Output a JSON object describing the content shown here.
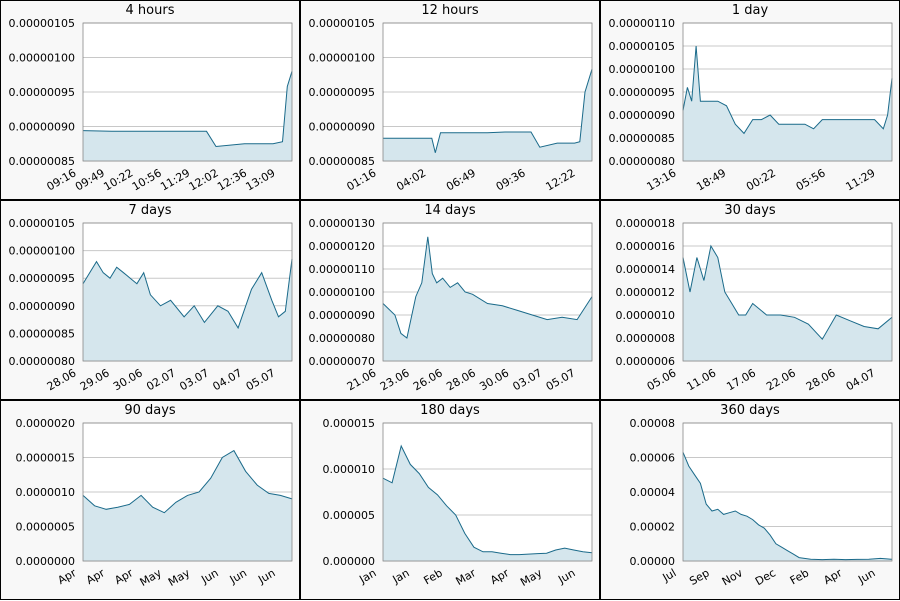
{
  "chart_data": [
    {
      "type": "area",
      "title": "4 hours",
      "ylim": [
        8.5e-07,
        1.05e-06
      ],
      "y_decimals": 8,
      "yticks": [
        "0.00000105",
        "0.00000100",
        "0.00000095",
        "0.00000090",
        "0.00000085"
      ],
      "xticks": [
        "09:16",
        "09:49",
        "10:22",
        "10:56",
        "11:29",
        "12:02",
        "12:36",
        "13:09"
      ],
      "x": [
        0,
        3,
        6,
        9,
        12,
        13,
        14,
        17,
        18,
        19,
        20,
        21,
        21.5,
        22
      ],
      "values": [
        8.94e-07,
        8.93e-07,
        8.93e-07,
        8.93e-07,
        8.93e-07,
        8.93e-07,
        8.71e-07,
        8.75e-07,
        8.75e-07,
        8.75e-07,
        8.75e-07,
        8.78e-07,
        9.58e-07,
        9.8e-07
      ]
    },
    {
      "type": "area",
      "title": "12 hours",
      "ylim": [
        8.5e-07,
        1.05e-06
      ],
      "y_decimals": 8,
      "yticks": [
        "0.00000105",
        "0.00000100",
        "0.00000095",
        "0.00000090",
        "0.00000085"
      ],
      "xticks": [
        "01:16",
        "04:02",
        "06:49",
        "09:36",
        "12:22"
      ],
      "x": [
        0,
        1.5,
        2.8,
        3,
        3.3,
        4,
        5,
        6,
        7,
        8,
        8.5,
        9,
        10,
        11,
        11.3,
        11.6,
        12
      ],
      "values": [
        8.83e-07,
        8.83e-07,
        8.83e-07,
        8.62e-07,
        8.91e-07,
        8.91e-07,
        8.91e-07,
        8.91e-07,
        8.92e-07,
        8.92e-07,
        8.92e-07,
        8.7e-07,
        8.76e-07,
        8.76e-07,
        8.78e-07,
        9.5e-07,
        9.83e-07
      ]
    },
    {
      "type": "area",
      "title": "1 day",
      "ylim": [
        8e-07,
        1.1e-06
      ],
      "y_decimals": 8,
      "yticks": [
        "0.00000110",
        "0.00000105",
        "0.00000100",
        "0.00000095",
        "0.00000090",
        "0.00000085",
        "0.00000080"
      ],
      "xticks": [
        "13:16",
        "18:49",
        "00:22",
        "05:56",
        "11:29"
      ],
      "x": [
        0,
        0.5,
        1,
        1.5,
        2,
        2.5,
        3,
        4,
        5,
        6,
        7,
        8,
        9,
        10,
        11,
        12,
        13,
        14,
        15,
        16,
        17,
        18,
        19,
        20,
        21,
        22,
        23,
        23.5,
        24
      ],
      "values": [
        9.1e-07,
        9.6e-07,
        9.3e-07,
        1.05e-06,
        9.3e-07,
        9.3e-07,
        9.3e-07,
        9.3e-07,
        9.2e-07,
        8.8e-07,
        8.6e-07,
        8.9e-07,
        8.9e-07,
        9e-07,
        8.8e-07,
        8.8e-07,
        8.8e-07,
        8.8e-07,
        8.7e-07,
        8.9e-07,
        8.9e-07,
        8.9e-07,
        8.9e-07,
        8.9e-07,
        8.9e-07,
        8.9e-07,
        8.7e-07,
        9e-07,
        9.8e-07
      ]
    },
    {
      "type": "area",
      "title": "7 days",
      "ylim": [
        8e-07,
        1.05e-06
      ],
      "y_decimals": 8,
      "yticks": [
        "0.00000105",
        "0.00000100",
        "0.00000095",
        "0.00000090",
        "0.00000085",
        "0.00000080"
      ],
      "xticks": [
        "28.06",
        "29.06",
        "30.06",
        "02.07",
        "03.07",
        "04.07",
        "05.07"
      ],
      "x": [
        0,
        0.2,
        0.4,
        0.6,
        0.8,
        1,
        1.2,
        1.4,
        1.6,
        1.8,
        2,
        2.3,
        2.6,
        3,
        3.3,
        3.6,
        4,
        4.3,
        4.6,
        5,
        5.3,
        5.6,
        5.8,
        6,
        6.2
      ],
      "values": [
        9.4e-07,
        9.6e-07,
        9.8e-07,
        9.6e-07,
        9.5e-07,
        9.7e-07,
        9.6e-07,
        9.5e-07,
        9.4e-07,
        9.6e-07,
        9.2e-07,
        9e-07,
        9.1e-07,
        8.8e-07,
        9e-07,
        8.7e-07,
        9e-07,
        8.9e-07,
        8.6e-07,
        9.3e-07,
        9.6e-07,
        9.1e-07,
        8.8e-07,
        8.9e-07,
        9.85e-07
      ]
    },
    {
      "type": "area",
      "title": "14 days",
      "ylim": [
        7e-07,
        1.3e-06
      ],
      "y_decimals": 8,
      "yticks": [
        "0.00000130",
        "0.00000120",
        "0.00000110",
        "0.00000100",
        "0.00000090",
        "0.00000080",
        "0.00000070"
      ],
      "xticks": [
        "21.06",
        "23.06",
        "26.06",
        "28.06",
        "30.06",
        "03.07",
        "05.07"
      ],
      "x": [
        0,
        0.8,
        1.2,
        1.6,
        2.2,
        2.6,
        3,
        3.3,
        3.6,
        4,
        4.5,
        5,
        5.5,
        6,
        7,
        8,
        9,
        10,
        11,
        12,
        13,
        14
      ],
      "values": [
        9.5e-07,
        9e-07,
        8.2e-07,
        8e-07,
        9.8e-07,
        1.04e-06,
        1.24e-06,
        1.08e-06,
        1.04e-06,
        1.06e-06,
        1.02e-06,
        1.04e-06,
        1e-06,
        9.9e-07,
        9.5e-07,
        9.4e-07,
        9.2e-07,
        9e-07,
        8.8e-07,
        8.9e-07,
        8.8e-07,
        9.8e-07
      ]
    },
    {
      "type": "area",
      "title": "30 days",
      "ylim": [
        6e-07,
        1.8e-06
      ],
      "y_decimals": 7,
      "yticks": [
        "0.0000018",
        "0.0000016",
        "0.0000014",
        "0.0000012",
        "0.0000010",
        "0.0000008",
        "0.0000006"
      ],
      "xticks": [
        "05.06",
        "11.06",
        "17.06",
        "22.06",
        "28.06",
        "04.07"
      ],
      "x": [
        0,
        1,
        2,
        3,
        4,
        5,
        6,
        7,
        8,
        9,
        10,
        12,
        14,
        16,
        18,
        20,
        22,
        24,
        26,
        28,
        30
      ],
      "values": [
        1.5e-06,
        1.2e-06,
        1.5e-06,
        1.3e-06,
        1.6e-06,
        1.5e-06,
        1.2e-06,
        1.1e-06,
        1e-06,
        1e-06,
        1.1e-06,
        1e-06,
        1e-06,
        9.8e-07,
        9.2e-07,
        7.9e-07,
        1e-06,
        9.5e-07,
        9e-07,
        8.8e-07,
        9.8e-07
      ]
    },
    {
      "type": "area",
      "title": "90 days",
      "ylim": [
        0,
        2e-06
      ],
      "y_decimals": 7,
      "yticks": [
        "0.0000020",
        "0.0000015",
        "0.0000010",
        "0.0000005",
        "0.0000000"
      ],
      "xticks": [
        "Apr",
        "Apr",
        "Apr",
        "May",
        "May",
        "Jun",
        "Jun",
        "Jun"
      ],
      "x": [
        0,
        5,
        10,
        15,
        20,
        25,
        30,
        35,
        40,
        45,
        50,
        55,
        60,
        65,
        70,
        75,
        80,
        85,
        90
      ],
      "values": [
        9.5e-07,
        8e-07,
        7.5e-07,
        7.8e-07,
        8.2e-07,
        9.5e-07,
        7.8e-07,
        7e-07,
        8.5e-07,
        9.5e-07,
        1e-06,
        1.2e-06,
        1.5e-06,
        1.6e-06,
        1.3e-06,
        1.1e-06,
        9.8e-07,
        9.5e-07,
        9e-07
      ]
    },
    {
      "type": "area",
      "title": "180 days",
      "ylim": [
        0,
        1.5e-05
      ],
      "y_decimals": 6,
      "yticks": [
        "0.000015",
        "0.000010",
        "0.000005",
        "0.000000"
      ],
      "xticks": [
        "Jan",
        "Jan",
        "Feb",
        "Mar",
        "Apr",
        "May",
        "Jun"
      ],
      "x": [
        0,
        8,
        16,
        24,
        32,
        40,
        48,
        56,
        64,
        72,
        80,
        88,
        96,
        104,
        112,
        120,
        128,
        136,
        144,
        152,
        160,
        168,
        176,
        184
      ],
      "values": [
        9e-06,
        8.5e-06,
        1.25e-05,
        1.05e-05,
        9.5e-06,
        8e-06,
        7.2e-06,
        6e-06,
        5e-06,
        3e-06,
        1.5e-06,
        1e-06,
        1e-06,
        8.5e-07,
        7e-07,
        7e-07,
        7.5e-07,
        8e-07,
        8.5e-07,
        1.2e-06,
        1.4e-06,
        1.2e-06,
        1e-06,
        9e-07
      ]
    },
    {
      "type": "area",
      "title": "360 days",
      "ylim": [
        0,
        8e-05
      ],
      "y_decimals": 5,
      "yticks": [
        "0.00008",
        "0.00006",
        "0.00004",
        "0.00002",
        "0.00000"
      ],
      "xticks": [
        "Jul",
        "Sep",
        "Nov",
        "Dec",
        "Feb",
        "Apr",
        "Jun"
      ],
      "x": [
        0,
        10,
        20,
        30,
        40,
        50,
        60,
        70,
        80,
        90,
        100,
        110,
        120,
        130,
        140,
        150,
        160,
        170,
        180,
        190,
        200,
        220,
        240,
        260,
        280,
        300,
        320,
        340,
        360
      ],
      "values": [
        6.3e-05,
        5.5e-05,
        5e-05,
        4.5e-05,
        3.3e-05,
        2.9e-05,
        3e-05,
        2.7e-05,
        2.8e-05,
        2.9e-05,
        2.7e-05,
        2.6e-05,
        2.4e-05,
        2.1e-05,
        1.9e-05,
        1.5e-05,
        1e-05,
        8e-06,
        6e-06,
        4e-06,
        2e-06,
        1e-06,
        8e-07,
        1e-06,
        8e-07,
        9e-07,
        1e-06,
        1.5e-06,
        1e-06
      ]
    }
  ]
}
